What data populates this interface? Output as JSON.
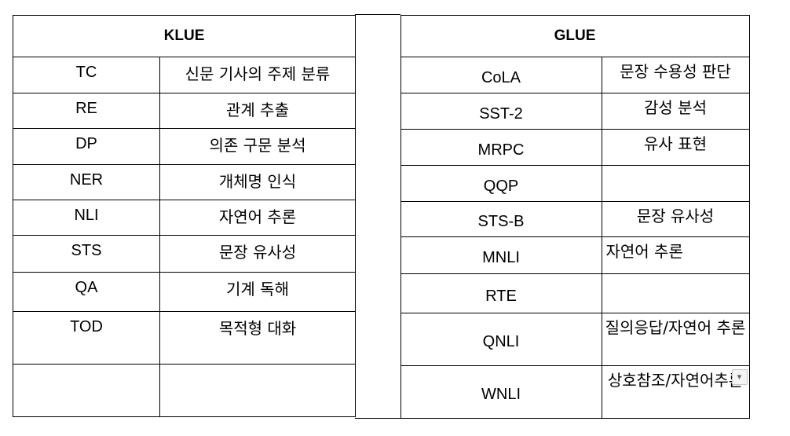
{
  "klue": {
    "header": "KLUE",
    "rows": [
      {
        "code": "TC",
        "desc": "신문 기사의 주제 분류"
      },
      {
        "code": "RE",
        "desc": "관계 추출"
      },
      {
        "code": "DP",
        "desc": "의존 구문 분석"
      },
      {
        "code": "NER",
        "desc": "개체명 인식"
      },
      {
        "code": "NLI",
        "desc": "자연어 추론"
      },
      {
        "code": "STS",
        "desc": "문장 유사성"
      },
      {
        "code": "QA",
        "desc": "기계 독해"
      },
      {
        "code": "TOD",
        "desc": "목적형 대화"
      },
      {
        "code": "",
        "desc": ""
      }
    ]
  },
  "glue": {
    "header": "GLUE",
    "rows": [
      {
        "code": "CoLA",
        "desc": "문장 수용성 판단"
      },
      {
        "code": "SST-2",
        "desc": "감성 분석"
      },
      {
        "code": "MRPC",
        "desc": "유사 표현"
      },
      {
        "code": "QQP",
        "desc": ""
      },
      {
        "code": "STS-B",
        "desc": "문장 유사성"
      },
      {
        "code": "MNLI",
        "desc": "자연어 추론"
      },
      {
        "code": "RTE",
        "desc": ""
      },
      {
        "code": "QNLI",
        "desc": "질의응답/자연어 추론"
      },
      {
        "code": "WNLI",
        "desc": "상호참조/자연어추론"
      }
    ]
  },
  "icons": {
    "dropdown": "dropdown-arrow-icon"
  }
}
